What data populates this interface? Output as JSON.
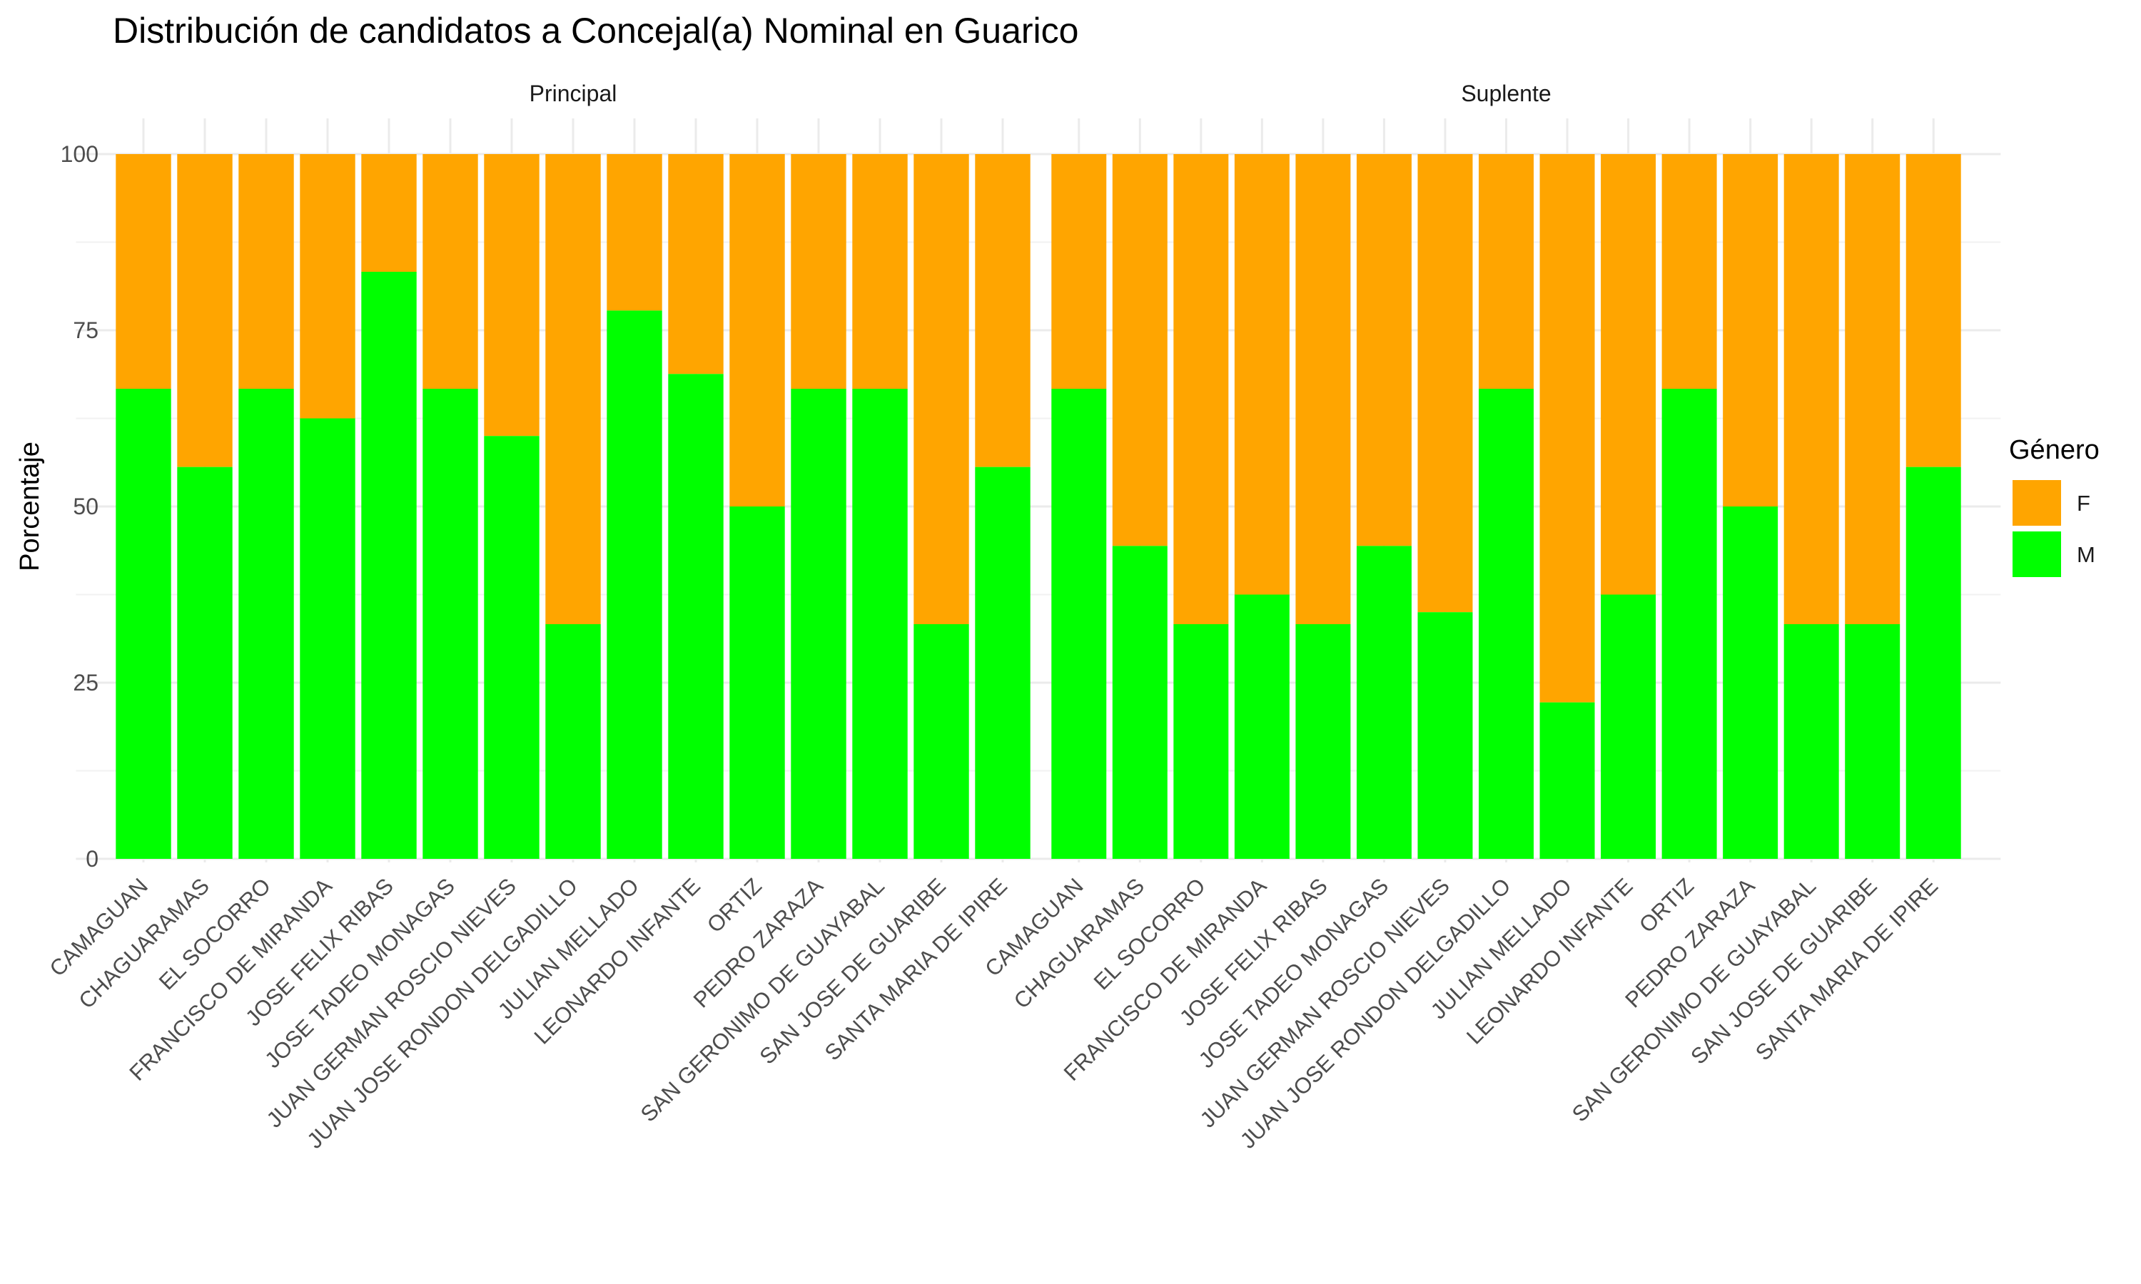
{
  "chart_data": {
    "type": "bar",
    "stacked": true,
    "title": "Distribución de candidatos a Concejal(a) Nominal en Guarico",
    "ylabel": "Porcentaje",
    "xlabel": "",
    "ylim": [
      0,
      100
    ],
    "yticks": [
      0,
      25,
      50,
      75,
      100
    ],
    "grid": true,
    "legend": {
      "title": "Género",
      "position": "right",
      "entries": [
        {
          "key": "F",
          "label": "F",
          "color": "#FFA500"
        },
        {
          "key": "M",
          "label": "M",
          "color": "#00FF00"
        }
      ]
    },
    "categories": [
      "CAMAGUAN",
      "CHAGUARAMAS",
      "EL SOCORRO",
      "FRANCISCO DE MIRANDA",
      "JOSE FELIX RIBAS",
      "JOSE TADEO MONAGAS",
      "JUAN GERMAN ROSCIO NIEVES",
      "JUAN JOSE RONDON DELGADILLO",
      "JULIAN MELLADO",
      "LEONARDO INFANTE",
      "ORTIZ",
      "PEDRO ZARAZA",
      "SAN GERONIMO DE GUAYABAL",
      "SAN JOSE DE GUARIBE",
      "SANTA MARIA DE IPIRE"
    ],
    "panels": [
      {
        "name": "Principal",
        "series": [
          {
            "name": "M",
            "values": [
              66.7,
              55.6,
              66.7,
              62.5,
              83.3,
              66.7,
              60.0,
              33.3,
              77.8,
              68.8,
              50.0,
              66.7,
              66.7,
              33.3,
              55.6
            ]
          },
          {
            "name": "F",
            "values": [
              33.3,
              44.4,
              33.3,
              37.5,
              16.7,
              33.3,
              40.0,
              66.7,
              22.2,
              31.2,
              50.0,
              33.3,
              33.3,
              66.7,
              44.4
            ]
          }
        ]
      },
      {
        "name": "Suplente",
        "series": [
          {
            "name": "M",
            "values": [
              66.7,
              44.4,
              33.3,
              37.5,
              33.3,
              44.4,
              35.0,
              66.7,
              22.2,
              37.5,
              66.7,
              50.0,
              33.3,
              33.3,
              55.6
            ]
          },
          {
            "name": "F",
            "values": [
              33.3,
              55.6,
              66.7,
              62.5,
              66.7,
              55.6,
              65.0,
              33.3,
              77.8,
              62.5,
              33.3,
              50.0,
              66.7,
              66.7,
              44.4
            ]
          }
        ]
      }
    ]
  }
}
